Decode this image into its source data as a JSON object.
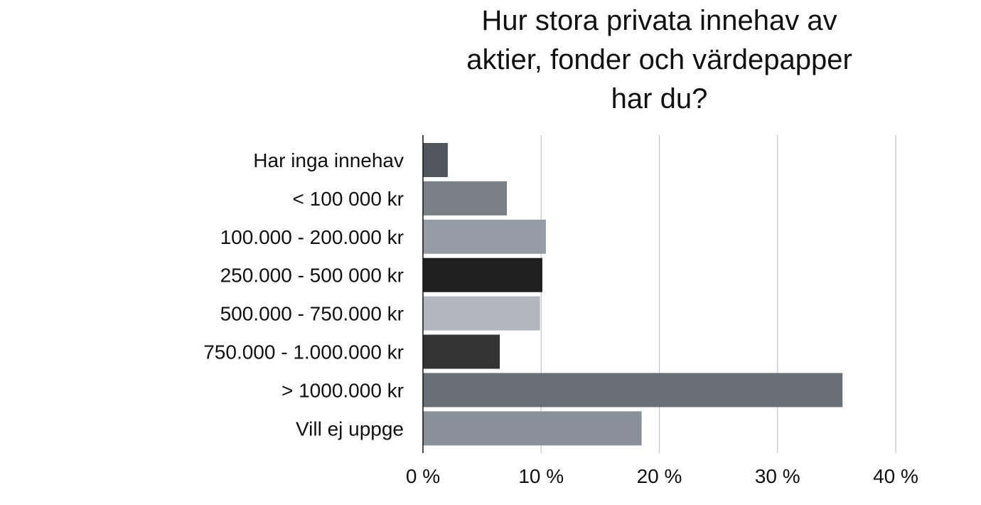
{
  "chart_data": {
    "type": "bar",
    "orientation": "horizontal",
    "title_lines": [
      "Hur stora privata innehav av",
      "aktier, fonder och värdepapper",
      "har du?"
    ],
    "categories": [
      "Har inga innehav",
      "< 100 000 kr",
      "100.000 - 200.000 kr",
      "250.000 - 500 000 kr",
      "500.000 - 750.000 kr",
      "750.000 - 1.000.000 kr",
      "> 1000.000 kr",
      "Vill ej uppge"
    ],
    "values": [
      2.1,
      7.1,
      10.4,
      10.1,
      9.9,
      6.5,
      35.5,
      18.5
    ],
    "colors": [
      "#52575f",
      "#7a7f88",
      "#959ca6",
      "#202020",
      "#b4b5be",
      "#333333",
      "#6a6f77",
      "#8a9099"
    ],
    "xlim": [
      0,
      40
    ],
    "x_ticks": [
      0,
      10,
      20,
      30,
      40
    ],
    "x_tick_labels": [
      "0 %",
      "10 %",
      "20 %",
      "30 %",
      "40 %"
    ],
    "grid": true,
    "grid_color": "#c4c4c4",
    "axis_color": "#111111",
    "xlabel": "",
    "ylabel": "",
    "legend": "none"
  }
}
